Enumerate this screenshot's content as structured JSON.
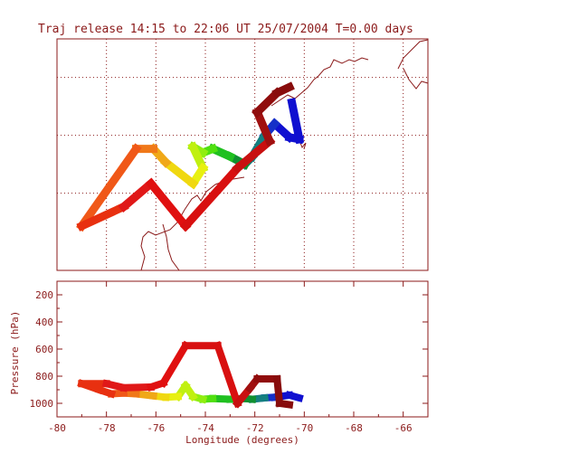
{
  "figure": {
    "title": "Traj release 14:15 to 22:06 UT 25/07/2004    T=0.00 days"
  },
  "colors": {
    "frame": "#8b1a1a",
    "grid": "#8b1a1a",
    "coastline": "#8b1a1a"
  },
  "chart_data": [
    {
      "type": "line",
      "panel": "map",
      "title": "Traj release 14:15 to 22:06 UT 25/07/2004    T=0.00 days",
      "xlabel": "",
      "ylabel": "",
      "grid": true,
      "x_range": [
        -80,
        -65
      ],
      "y_range": [
        37,
        49
      ],
      "series": [
        {
          "points": [
            {
              "x": -70.5,
              "y": 45.7,
              "color": "#1010d0"
            },
            {
              "x": -70.2,
              "y": 43.8,
              "color": "#1010d0"
            },
            {
              "x": -70.6,
              "y": 43.9,
              "color": "#1010d0"
            },
            {
              "x": -71.2,
              "y": 44.6,
              "color": "#1530c8"
            },
            {
              "x": -71.6,
              "y": 44.0,
              "color": "#148080"
            },
            {
              "x": -72.1,
              "y": 42.9,
              "color": "#148080"
            },
            {
              "x": -72.4,
              "y": 42.5,
              "color": "#109030"
            },
            {
              "x": -73.0,
              "y": 42.9,
              "color": "#20c020"
            },
            {
              "x": -73.7,
              "y": 43.3,
              "color": "#50e010"
            },
            {
              "x": -74.1,
              "y": 43.1,
              "color": "#90ee10"
            },
            {
              "x": -74.5,
              "y": 43.4,
              "color": "#c0f010"
            },
            {
              "x": -74.1,
              "y": 42.3,
              "color": "#e8f010"
            },
            {
              "x": -74.5,
              "y": 41.5,
              "color": "#f0d810"
            },
            {
              "x": -75.6,
              "y": 42.6,
              "color": "#f0a818"
            },
            {
              "x": -76.1,
              "y": 43.3,
              "color": "#f07818"
            },
            {
              "x": -76.8,
              "y": 43.3,
              "color": "#f05818"
            },
            {
              "x": -79.0,
              "y": 39.3,
              "color": "#e83010"
            },
            {
              "x": -77.3,
              "y": 40.3,
              "color": "#e01818"
            },
            {
              "x": -76.2,
              "y": 41.5,
              "color": "#e01010"
            },
            {
              "x": -74.8,
              "y": 39.3,
              "color": "#d81010"
            },
            {
              "x": -72.7,
              "y": 42.3,
              "color": "#c81010"
            },
            {
              "x": -71.4,
              "y": 43.7,
              "color": "#a01010"
            },
            {
              "x": -71.9,
              "y": 45.2,
              "color": "#900c0c"
            },
            {
              "x": -71.1,
              "y": 46.2,
              "color": "#880c0c"
            },
            {
              "x": -70.6,
              "y": 46.5,
              "color": "#880c0c"
            }
          ]
        }
      ]
    },
    {
      "type": "line",
      "panel": "profile",
      "xlabel": "Longitude  (degrees)",
      "ylabel": "Pressure  (hPa)",
      "grid": false,
      "x_range": [
        -80,
        -65
      ],
      "y_range": [
        1100,
        100
      ],
      "x_ticks": [
        "-80",
        "-78",
        "-76",
        "-74",
        "-72",
        "-70",
        "-68",
        "-66"
      ],
      "y_ticks": [
        "200",
        "400",
        "600",
        "800",
        "1000"
      ],
      "series": [
        {
          "points": [
            {
              "x": -70.2,
              "y": 960,
              "color": "#1010d0"
            },
            {
              "x": -70.6,
              "y": 940,
              "color": "#1010d0"
            },
            {
              "x": -71.2,
              "y": 955,
              "color": "#1530c8"
            },
            {
              "x": -71.6,
              "y": 960,
              "color": "#148080"
            },
            {
              "x": -72.1,
              "y": 970,
              "color": "#109030"
            },
            {
              "x": -72.4,
              "y": 965,
              "color": "#109030"
            },
            {
              "x": -73.0,
              "y": 970,
              "color": "#20c020"
            },
            {
              "x": -73.7,
              "y": 965,
              "color": "#50e010"
            },
            {
              "x": -74.1,
              "y": 970,
              "color": "#90ee10"
            },
            {
              "x": -74.5,
              "y": 950,
              "color": "#c0f010"
            },
            {
              "x": -74.8,
              "y": 870,
              "color": "#c0f010"
            },
            {
              "x": -75.1,
              "y": 950,
              "color": "#e8f010"
            },
            {
              "x": -75.6,
              "y": 955,
              "color": "#f0d810"
            },
            {
              "x": -76.1,
              "y": 945,
              "color": "#f0a818"
            },
            {
              "x": -76.8,
              "y": 930,
              "color": "#f07818"
            },
            {
              "x": -77.3,
              "y": 925,
              "color": "#f05818"
            },
            {
              "x": -77.8,
              "y": 930,
              "color": "#e83010"
            },
            {
              "x": -78.3,
              "y": 900,
              "color": "#e83010"
            },
            {
              "x": -79.0,
              "y": 855,
              "color": "#e83010"
            },
            {
              "x": -78.0,
              "y": 855,
              "color": "#e01818"
            },
            {
              "x": -77.3,
              "y": 885,
              "color": "#e01818"
            },
            {
              "x": -76.2,
              "y": 880,
              "color": "#e01010"
            },
            {
              "x": -75.7,
              "y": 850,
              "color": "#e01010"
            },
            {
              "x": -74.8,
              "y": 575,
              "color": "#d81010"
            },
            {
              "x": -73.5,
              "y": 575,
              "color": "#d81010"
            },
            {
              "x": -72.7,
              "y": 1000,
              "color": "#c81010"
            },
            {
              "x": -72.2,
              "y": 890,
              "color": "#a01010"
            },
            {
              "x": -71.9,
              "y": 820,
              "color": "#900c0c"
            },
            {
              "x": -71.1,
              "y": 820,
              "color": "#880c0c"
            },
            {
              "x": -71.0,
              "y": 1000,
              "color": "#880c0c"
            },
            {
              "x": -70.6,
              "y": 1010,
              "color": "#880c0c"
            }
          ]
        }
      ]
    }
  ]
}
